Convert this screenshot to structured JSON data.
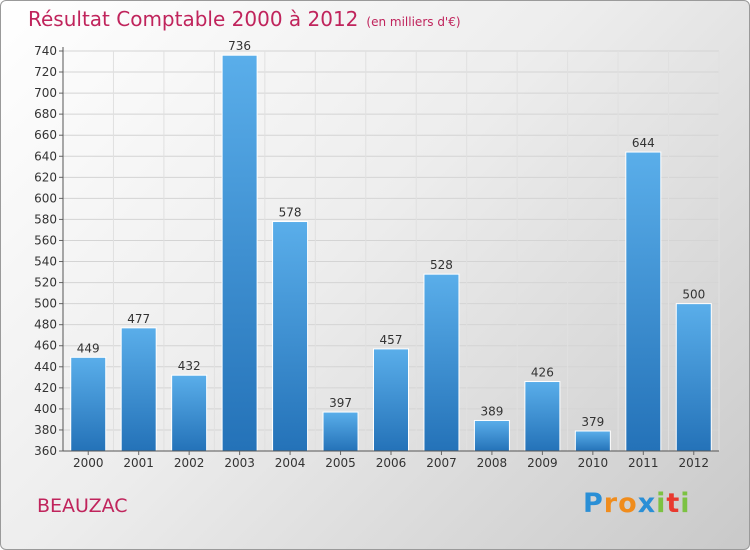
{
  "chart_data": {
    "type": "bar",
    "title": "Résultat Comptable 2000 à 2012",
    "unit": "(en milliers d'€)",
    "categories": [
      "2000",
      "2001",
      "2002",
      "2003",
      "2004",
      "2005",
      "2006",
      "2007",
      "2008",
      "2009",
      "2010",
      "2011",
      "2012"
    ],
    "values": [
      449,
      477,
      432,
      736,
      578,
      397,
      457,
      528,
      389,
      426,
      379,
      644,
      500
    ],
    "xlabel": "",
    "ylabel": "",
    "ylim": [
      360,
      740
    ],
    "yticks": [
      360,
      380,
      400,
      420,
      440,
      460,
      480,
      500,
      520,
      540,
      560,
      580,
      600,
      620,
      640,
      660,
      680,
      700,
      720,
      740
    ],
    "grid": true,
    "bar_color": "#3d8fd3"
  },
  "commune": "BEAUZAC",
  "logo": {
    "text": "Proxiti",
    "letters": [
      {
        "ch": "P",
        "color": "#2a8fd6"
      },
      {
        "ch": "r",
        "color": "#f08c1c"
      },
      {
        "ch": "o",
        "color": "#f08c1c"
      },
      {
        "ch": "x",
        "color": "#2a8fd6"
      },
      {
        "ch": "i",
        "color": "#7cc242"
      },
      {
        "ch": "t",
        "color": "#e8392f"
      },
      {
        "ch": "i",
        "color": "#7cc242"
      }
    ]
  }
}
